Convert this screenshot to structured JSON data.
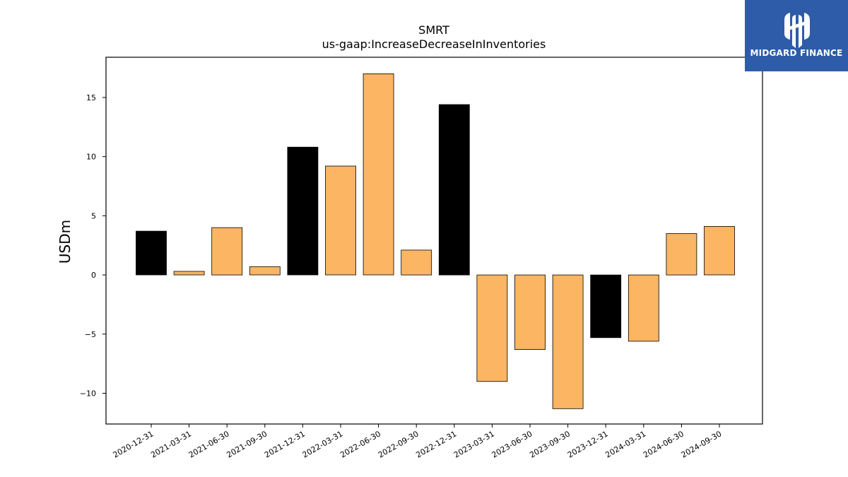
{
  "chart_data": {
    "type": "bar",
    "title": "SMRT",
    "subtitle": "us-gaap:IncreaseDecreaseInInventories",
    "xlabel": "",
    "ylabel": "USDm",
    "ylim": [
      -12.6,
      18.4
    ],
    "yticks": [
      -10,
      -5,
      0,
      5,
      10,
      15
    ],
    "ytick_labels": [
      "−10",
      "−5",
      "0",
      "5",
      "10",
      "15"
    ],
    "grid": false,
    "categories": [
      "2020-12-31",
      "2021-03-31",
      "2021-06-30",
      "2021-09-30",
      "2021-12-31",
      "2022-03-31",
      "2022-06-30",
      "2022-09-30",
      "2022-12-31",
      "2023-03-31",
      "2023-06-30",
      "2023-09-30",
      "2023-12-31",
      "2024-03-31",
      "2024-06-30",
      "2024-09-30"
    ],
    "values": [
      3.7,
      0.3,
      4.0,
      0.7,
      10.8,
      9.2,
      17.0,
      2.1,
      14.4,
      -9.0,
      -6.3,
      -11.3,
      -5.3,
      -5.6,
      3.5,
      4.1
    ],
    "bar_colors": [
      "#000000",
      "#fbb563",
      "#fbb563",
      "#fbb563",
      "#000000",
      "#fbb563",
      "#fbb563",
      "#fbb563",
      "#000000",
      "#fbb563",
      "#fbb563",
      "#fbb563",
      "#000000",
      "#fbb563",
      "#fbb563",
      "#fbb563"
    ],
    "edge_color": "#000000"
  },
  "logo": {
    "text": "MIDGARD FINANCE",
    "background": "#2e5ca8"
  }
}
